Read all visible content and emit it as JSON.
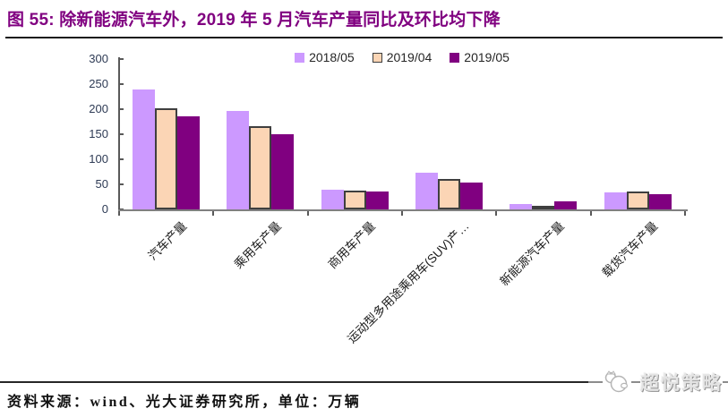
{
  "title": "图 55: 除新能源汽车外，2019 年 5 月汽车产量同比及环比均下降",
  "footer": {
    "source": "资料来源：wind、光大证券研究所，单位：万辆",
    "logo_text": "超悦策略"
  },
  "colors": {
    "title_accent": "#800080",
    "axis_line": "#808080",
    "tick_line": "#595959",
    "y_tick_label": "#2E3B55",
    "category_label": "#1A1A1A",
    "series_2018_05": "#CC99FF",
    "series_2019_04": "#FBD5B5",
    "series_2019_05": "#800080",
    "bar_border": "#3F3F3F"
  },
  "chart_data": {
    "type": "bar",
    "title": "除新能源汽车外，2019 年 5 月汽车产量同比及环比均下降",
    "unit": "万辆",
    "categories": [
      "汽车产量",
      "乘用车产量",
      "商用车产量",
      "运动型多用途乘用车(SUV)产…",
      "新能源汽车产量",
      "载货汽车产量"
    ],
    "series": [
      {
        "name": "2018/05",
        "color": "#CC99FF",
        "border": null,
        "values": [
          240,
          196,
          39,
          73,
          11,
          34
        ]
      },
      {
        "name": "2019/04",
        "color": "#FBD5B5",
        "border": "#3F3F3F",
        "values": [
          202,
          166,
          38,
          61,
          7,
          36
        ]
      },
      {
        "name": "2019/05",
        "color": "#800080",
        "border": null,
        "values": [
          186,
          150,
          35,
          54,
          16,
          31
        ]
      }
    ],
    "xlabel": "",
    "ylabel": "",
    "ylim": [
      0,
      300
    ],
    "yticks": [
      0,
      50,
      100,
      150,
      200,
      250,
      300
    ],
    "legend_position": "top",
    "grid": false
  }
}
